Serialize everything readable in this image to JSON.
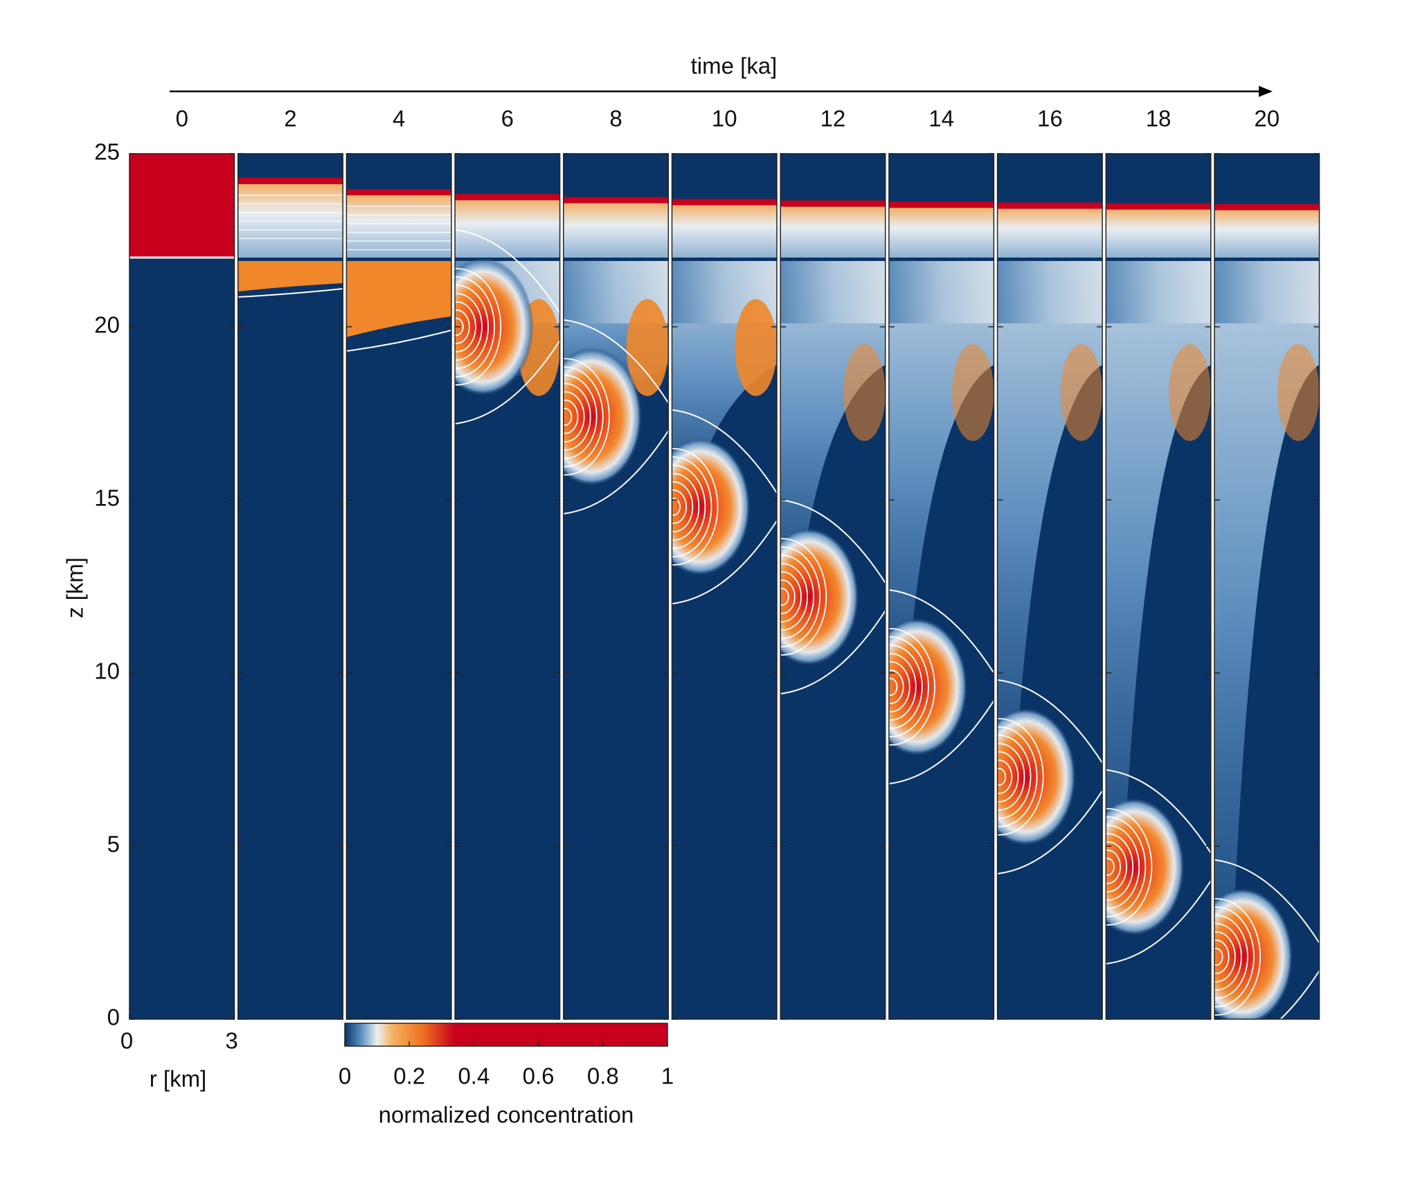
{
  "chart_data": {
    "type": "panels",
    "title": "time [ka]",
    "time_ticks": [
      0,
      2,
      4,
      6,
      8,
      10,
      12,
      14,
      16,
      18,
      20
    ],
    "ylabel": "z [km]",
    "ylim": [
      0,
      25
    ],
    "yticks": [
      0,
      5,
      10,
      15,
      20,
      25
    ],
    "xlabel": "r [km]",
    "xlim": [
      0,
      3
    ],
    "xticks": [
      0,
      3
    ],
    "colorbar": {
      "label": "normalized concentration",
      "lim": [
        0,
        1
      ],
      "ticks": [
        0,
        0.2,
        0.4,
        0.6,
        0.8,
        1
      ]
    }
  }
}
